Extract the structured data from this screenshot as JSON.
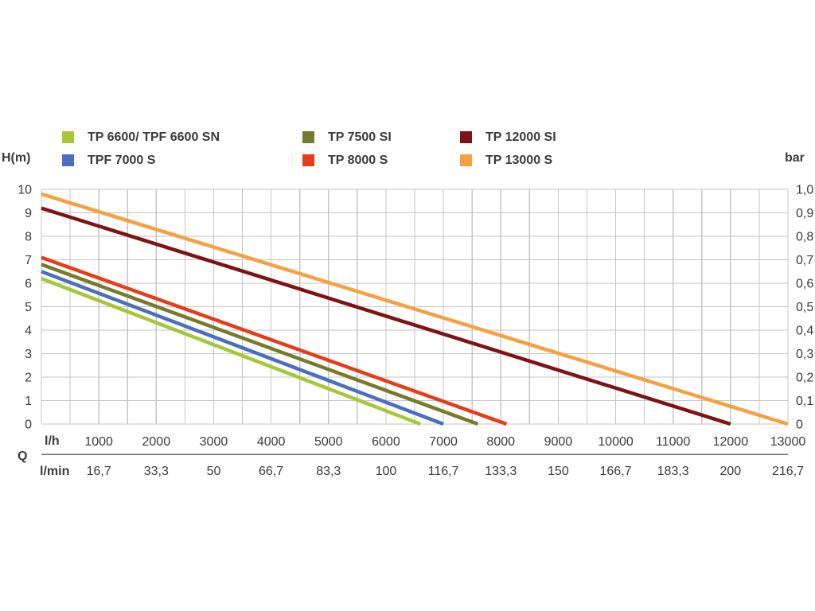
{
  "axes": {
    "y_left_title": "H(m)",
    "y_right_title": "bar",
    "x_primary_label": "l/h",
    "x_secondary_label": "l/min",
    "q_label": "Q"
  },
  "legend": {
    "items": [
      {
        "label": "TP 6600/ TPF 6600 SN",
        "color": "#a6c836"
      },
      {
        "label": "TPF 7000 S",
        "color": "#4a6ec1"
      },
      {
        "label": "TP 7500 SI",
        "color": "#777a28"
      },
      {
        "label": "TP 8000 S",
        "color": "#e73c1a"
      },
      {
        "label": "TP 12000 SI",
        "color": "#7e1315"
      },
      {
        "label": "TP 13000 S",
        "color": "#f6a040"
      }
    ]
  },
  "chart_data": {
    "type": "line",
    "title": "",
    "ylabel_left": "H(m)",
    "ylabel_right": "bar",
    "x_units": [
      "l/h",
      "l/min"
    ],
    "q_label": "Q",
    "xlim": [
      0,
      13000
    ],
    "ylim": [
      0,
      10
    ],
    "ylim_right": [
      0,
      1.0
    ],
    "grid": {
      "x_step": 500,
      "y_step": 1,
      "color": "#c6c6c6"
    },
    "x_ticks_lh": [
      1000,
      2000,
      3000,
      4000,
      5000,
      6000,
      7000,
      8000,
      9000,
      10000,
      11000,
      12000,
      13000
    ],
    "x_ticks_lmin": [
      "16,7",
      "33,3",
      "50",
      "66,7",
      "83,3",
      "100",
      "116,7",
      "133,3",
      "150",
      "166,7",
      "183,3",
      "200",
      "216,7"
    ],
    "y_ticks_left": [
      "10",
      "9",
      "8",
      "7",
      "6",
      "5",
      "4",
      "3",
      "2",
      "1",
      "0"
    ],
    "y_ticks_right": [
      "1,0",
      "0,9",
      "0,8",
      "0,7",
      "0,6",
      "0,5",
      "0,4",
      "0,3",
      "0,2",
      "0,1",
      "0"
    ],
    "series": [
      {
        "name": "TP 6600/ TPF 6600 SN",
        "color": "#a6c836",
        "points": [
          [
            0,
            6.2
          ],
          [
            6600,
            0
          ]
        ]
      },
      {
        "name": "TPF 7000 S",
        "color": "#4a6ec1",
        "points": [
          [
            0,
            6.5
          ],
          [
            7000,
            0
          ]
        ]
      },
      {
        "name": "TP 7500 SI",
        "color": "#777a28",
        "points": [
          [
            0,
            6.8
          ],
          [
            7600,
            0
          ]
        ]
      },
      {
        "name": "TP 8000 S",
        "color": "#e73c1a",
        "points": [
          [
            0,
            7.1
          ],
          [
            8100,
            0
          ]
        ]
      },
      {
        "name": "TP 12000 SI",
        "color": "#7e1315",
        "points": [
          [
            0,
            9.2
          ],
          [
            12000,
            0
          ]
        ]
      },
      {
        "name": "TP 13000 S",
        "color": "#f6a040",
        "points": [
          [
            0,
            9.8
          ],
          [
            13000,
            0
          ]
        ]
      }
    ]
  }
}
